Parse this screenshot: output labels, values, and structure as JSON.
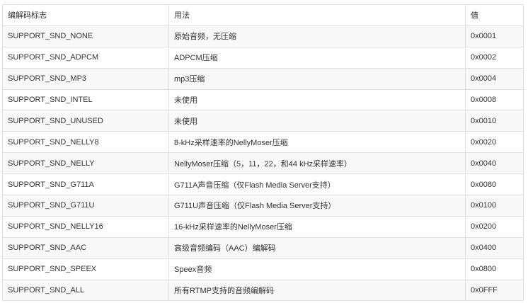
{
  "table": {
    "headers": [
      "编解码标志",
      "用法",
      "值"
    ],
    "rows": [
      [
        "SUPPORT_SND_NONE",
        "原始音频，无压缩",
        "0x0001"
      ],
      [
        "SUPPORT_SND_ADPCM",
        "ADPCM压缩",
        "0x0002"
      ],
      [
        "SUPPORT_SND_MP3",
        "mp3压缩",
        "0x0004"
      ],
      [
        "SUPPORT_SND_INTEL",
        "未使用",
        "0x0008"
      ],
      [
        "SUPPORT_SND_UNUSED",
        "未使用",
        "0x0010"
      ],
      [
        "SUPPORT_SND_NELLY8",
        "8-kHz采样速率的NellyMoser压缩",
        "0x0020"
      ],
      [
        "SUPPORT_SND_NELLY",
        "NellyMoser压缩（5，11，22，和44 kHz采样速率）",
        "0x0040"
      ],
      [
        "SUPPORT_SND_G711A",
        "G711A声音压缩（仅Flash Media Server支持）",
        "0x0080"
      ],
      [
        "SUPPORT_SND_G711U",
        "G711U声音压缩（仅Flash Media Server支持）",
        "0x0100"
      ],
      [
        "SUPPORT_SND_NELLY16",
        "16-kHz采样速率的NellyMoser压缩",
        "0x0200"
      ],
      [
        "SUPPORT_SND_AAC",
        "高级音频编码（AAC）编解码",
        "0x0400"
      ],
      [
        "SUPPORT_SND_SPEEX",
        "Speex音频",
        "0x0800"
      ],
      [
        "SUPPORT_SND_ALL",
        "所有RTMP支持的音频编解码",
        "0x0FFF"
      ]
    ]
  }
}
